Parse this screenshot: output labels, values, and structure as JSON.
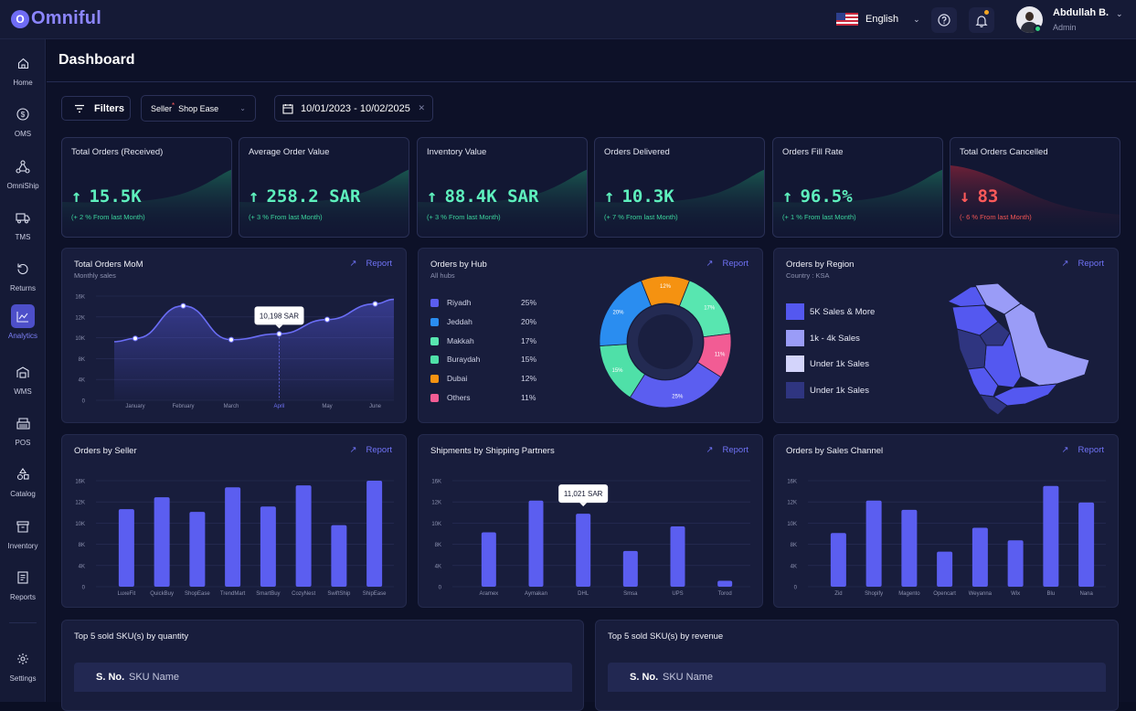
{
  "app": {
    "name": "Omniful",
    "logo_glyph": "O"
  },
  "topbar": {
    "language": "English",
    "user_name": "Abdullah B.",
    "user_role": "Admin",
    "icons": [
      "flag-us-icon",
      "help-icon",
      "bell-icon"
    ]
  },
  "sidebar": {
    "items": [
      {
        "label": "Home",
        "icon": "home-icon"
      },
      {
        "label": "OMS",
        "icon": "dollar-icon"
      },
      {
        "label": "OmniShip",
        "icon": "network-icon"
      },
      {
        "label": "TMS",
        "icon": "truck-icon"
      },
      {
        "label": "Returns",
        "icon": "returns-icon"
      },
      {
        "label": "Analytics",
        "icon": "analytics-icon",
        "active": true
      },
      {
        "label": "WMS",
        "icon": "warehouse-icon"
      },
      {
        "label": "POS",
        "icon": "pos-icon"
      },
      {
        "label": "Catalog",
        "icon": "shapes-icon"
      },
      {
        "label": "Inventory",
        "icon": "inventory-icon"
      },
      {
        "label": "Reports",
        "icon": "report-icon"
      }
    ],
    "settings": "Settings"
  },
  "page": {
    "title": "Dashboard"
  },
  "filters": {
    "label": "Filters",
    "seller_label": "Seller",
    "seller_req": "*",
    "seller_value": "Shop Ease",
    "date_range": "10/01/2023 - 10/02/2025",
    "clear": "✕"
  },
  "kpis": [
    {
      "title": "Total Orders (Received)",
      "arrow": "↑",
      "value": "15.5K",
      "sub": "(+ 2 % From last Month)",
      "trend": "up"
    },
    {
      "title": "Average Order Value",
      "arrow": "↑",
      "value": "258.2 SAR",
      "sub": "(+ 3 % From last Month)",
      "trend": "up"
    },
    {
      "title": "Inventory Value",
      "arrow": "↑",
      "value": "88.4K SAR",
      "sub": "(+ 3 % From last Month)",
      "trend": "up"
    },
    {
      "title": "Orders Delivered",
      "arrow": "↑",
      "value": "10.3K",
      "sub": "(+ 7 % From last Month)",
      "trend": "up"
    },
    {
      "title": "Orders Fill Rate",
      "arrow": "↑",
      "value": "96.5%",
      "sub": "(+ 1 % From last Month)",
      "trend": "up"
    },
    {
      "title": "Total Orders Cancelled",
      "arrow": "↓",
      "value": "83",
      "sub": "(- 6 % From last Month)",
      "trend": "down"
    }
  ],
  "report_label": "Report",
  "orders_mom": {
    "title": "Total Orders MoM",
    "subtitle": "Monthly sales",
    "tooltip": "10,198 SAR",
    "highlight": "April"
  },
  "orders_by_hub": {
    "title": "Orders by Hub",
    "subtitle": "All hubs",
    "legend": [
      {
        "name": "Riyadh",
        "pct": "25%",
        "color": "#5b5ef0"
      },
      {
        "name": "Jeddah",
        "pct": "20%",
        "color": "#2a8df0"
      },
      {
        "name": "Makkah",
        "pct": "17%",
        "color": "#58e6b0"
      },
      {
        "name": "Buraydah",
        "pct": "15%",
        "color": "#4fe0a8"
      },
      {
        "name": "Dubai",
        "pct": "12%",
        "color": "#f59211"
      },
      {
        "name": "Others",
        "pct": "11%",
        "color": "#f25c94"
      }
    ]
  },
  "orders_by_region": {
    "title": "Orders by Region",
    "subtitle": "Country : KSA",
    "legend": [
      {
        "label": "5K Sales & More",
        "color": "#5458f0"
      },
      {
        "label": "1k - 4k Sales",
        "color": "#9a9cf7"
      },
      {
        "label": "Under 1k Sales",
        "color": "#d3d4fb"
      },
      {
        "label": "Under 1k Sales",
        "color": "#2f3580"
      }
    ]
  },
  "orders_by_seller": {
    "title": "Orders by Seller"
  },
  "shipments": {
    "title": "Shipments by Shipping Partners",
    "tooltip": "11,021 SAR"
  },
  "sales_channel": {
    "title": "Orders by Sales Channel"
  },
  "top_qty": {
    "title": "Top 5 sold SKU(s) by quantity",
    "col_sno": "S. No.",
    "col_sku": "SKU Name"
  },
  "top_rev": {
    "title": "Top 5 sold SKU(s) by revenue",
    "col_sno": "S. No.",
    "col_sku": "SKU Name"
  },
  "chart_data": [
    {
      "type": "area",
      "title": "Total Orders MoM",
      "subtitle": "Monthly sales",
      "categories": [
        "January",
        "February",
        "March",
        "April",
        "May",
        "June"
      ],
      "series": [
        {
          "values": [
            9500,
            14500,
            9300,
            10198,
            12400,
            14800
          ]
        }
      ],
      "yticks": [
        "0",
        "4K",
        "8K",
        "10K",
        "12K",
        "16K"
      ],
      "color": "#5b5ef0",
      "grid": true
    },
    {
      "type": "pie",
      "title": "Orders by Hub",
      "slices": [
        {
          "name": "Riyadh",
          "value": 25,
          "color": "#5b5ef0"
        },
        {
          "name": "Buraydah",
          "value": 15,
          "color": "#4fe0a8"
        },
        {
          "name": "Jeddah",
          "value": 20,
          "color": "#2a8df0"
        },
        {
          "name": "Dubai",
          "value": 12,
          "color": "#f59211"
        },
        {
          "name": "Makkah",
          "value": 17,
          "color": "#58e6b0"
        },
        {
          "name": "Others",
          "value": 11,
          "color": "#f25c94"
        }
      ]
    },
    {
      "type": "bar",
      "title": "Orders by Seller",
      "categories": [
        "LuxeFit",
        "QuickBuy",
        "ShopEase",
        "TrendMart",
        "SmartBuy",
        "CozyNest",
        "SwiftShip",
        "ShipEase"
      ],
      "values": [
        11700,
        13500,
        11300,
        15000,
        12100,
        15300,
        9300,
        16000
      ],
      "yticks": [
        "0",
        "4K",
        "8K",
        "10K",
        "12K",
        "16K"
      ],
      "ylim": [
        0,
        16000
      ],
      "color": "#5b5ef0"
    },
    {
      "type": "bar",
      "title": "Shipments by Shipping Partners",
      "categories": [
        "Aramex",
        "Aymakan",
        "DHL",
        "Smsa",
        "UPS",
        "Torod"
      ],
      "values": [
        8200,
        13000,
        11021,
        5400,
        9100,
        900
      ],
      "yticks": [
        "0",
        "4K",
        "8K",
        "10K",
        "12K",
        "16K"
      ],
      "ylim": [
        0,
        16000
      ],
      "color": "#5b5ef0"
    },
    {
      "type": "bar",
      "title": "Orders by Sales Channel",
      "categories": [
        "Zid",
        "Shopify",
        "Magento",
        "Opencart",
        "Weyanna",
        "Wix",
        "Blu",
        "Nana"
      ],
      "values": [
        8100,
        13000,
        11600,
        5300,
        8900,
        7000,
        15200,
        12700
      ],
      "yticks": [
        "0",
        "4K",
        "8K",
        "10K",
        "12K",
        "16K"
      ],
      "ylim": [
        0,
        16000
      ],
      "color": "#5b5ef0"
    }
  ]
}
